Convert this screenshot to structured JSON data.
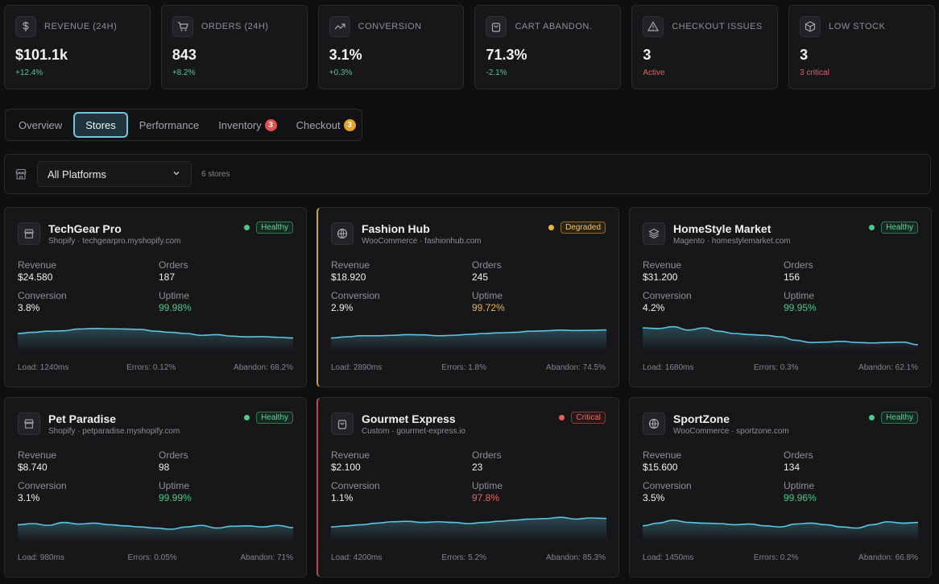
{
  "kpis": [
    {
      "label": "REVENUE (24H)",
      "value": "$101.1k",
      "delta": "+12.4%",
      "icon": "dollar-icon",
      "tone": "green"
    },
    {
      "label": "ORDERS (24H)",
      "value": "843",
      "delta": "+8.2%",
      "icon": "cart-icon",
      "tone": "green"
    },
    {
      "label": "CONVERSION",
      "value": "3.1%",
      "delta": "+0.3%",
      "icon": "trend-up-icon",
      "tone": "green"
    },
    {
      "label": "CART ABANDON.",
      "value": "71.3%",
      "delta": "-2.1%",
      "icon": "bag-icon",
      "tone": "green"
    },
    {
      "label": "CHECKOUT ISSUES",
      "value": "3",
      "delta": "Active",
      "icon": "warning-icon",
      "tone": "red"
    },
    {
      "label": "LOW STOCK",
      "value": "3",
      "delta": "3 critical",
      "icon": "box-icon",
      "tone": "red"
    }
  ],
  "tabs": [
    {
      "label": "Overview",
      "active": false
    },
    {
      "label": "Stores",
      "active": true
    },
    {
      "label": "Performance",
      "active": false
    },
    {
      "label": "Inventory",
      "badge": "3",
      "badge_color": "#e0514f",
      "active": false
    },
    {
      "label": "Checkout",
      "badge": "3",
      "badge_color": "#e4a12d",
      "active": false
    }
  ],
  "filter": {
    "platform_selected": "All Platforms",
    "store_count": "6 stores"
  },
  "labels": {
    "revenue": "Revenue",
    "orders": "Orders",
    "conversion": "Conversion",
    "uptime": "Uptime"
  },
  "stores": [
    {
      "name": "TechGear Pro",
      "sub": "Shopify · techgearpro.myshopify.com",
      "icon": "storefront-icon",
      "status": "Healthy",
      "status_key": "healthy",
      "revenue": "$24.580",
      "orders": "187",
      "conversion": "3.8%",
      "uptime": "99.98%",
      "uptime_tone": "green",
      "load": "Load: 1240ms",
      "errors": "Errors: 0.12%",
      "abandon": "Abandon: 68.2%",
      "spark": [
        0.5,
        0.55,
        0.6,
        0.62,
        0.7,
        0.72,
        0.71,
        0.7,
        0.68,
        0.6,
        0.55,
        0.5,
        0.42,
        0.45,
        0.38,
        0.35,
        0.36,
        0.33,
        0.3
      ]
    },
    {
      "name": "Fashion Hub",
      "sub": "WooCommerce · fashionhub.com",
      "icon": "globe-icon",
      "status": "Degraded",
      "status_key": "degraded",
      "revenue": "$18.920",
      "orders": "245",
      "conversion": "2.9%",
      "uptime": "99.72%",
      "uptime_tone": "yellow",
      "load": "Load: 2890ms",
      "errors": "Errors: 1.8%",
      "abandon": "Abandon: 74.5%",
      "spark": [
        0.3,
        0.35,
        0.4,
        0.4,
        0.42,
        0.45,
        0.44,
        0.4,
        0.42,
        0.46,
        0.5,
        0.53,
        0.55,
        0.6,
        0.62,
        0.65,
        0.63,
        0.64,
        0.66
      ]
    },
    {
      "name": "HomeStyle Market",
      "sub": "Magento · homestylemarket.com",
      "icon": "layers-icon",
      "status": "Healthy",
      "status_key": "healthy",
      "revenue": "$31.200",
      "orders": "156",
      "conversion": "4.2%",
      "uptime": "99.95%",
      "uptime_tone": "green",
      "load": "Load: 1680ms",
      "errors": "Errors: 0.3%",
      "abandon": "Abandon: 62.1%",
      "spark": [
        0.75,
        0.72,
        0.8,
        0.65,
        0.75,
        0.6,
        0.5,
        0.45,
        0.42,
        0.35,
        0.2,
        0.1,
        0.12,
        0.15,
        0.1,
        0.08,
        0.1,
        0.12,
        0.0
      ]
    },
    {
      "name": "Pet Paradise",
      "sub": "Shopify · petparadise.myshopify.com",
      "icon": "storefront-icon",
      "status": "Healthy",
      "status_key": "healthy",
      "revenue": "$8.740",
      "orders": "98",
      "conversion": "3.1%",
      "uptime": "99.99%",
      "uptime_tone": "green",
      "load": "Load: 980ms",
      "errors": "Errors: 0.05%",
      "abandon": "Abandon: 71%",
      "spark": [
        0.45,
        0.5,
        0.42,
        0.55,
        0.48,
        0.52,
        0.45,
        0.4,
        0.35,
        0.3,
        0.25,
        0.35,
        0.42,
        0.3,
        0.38,
        0.4,
        0.35,
        0.42,
        0.32
      ]
    },
    {
      "name": "Gourmet Express",
      "sub": "Custom · gourmet-express.io",
      "icon": "bag-icon",
      "status": "Critical",
      "status_key": "critical",
      "revenue": "$2.100",
      "orders": "23",
      "conversion": "1.1%",
      "uptime": "97.8%",
      "uptime_tone": "red",
      "load": "Load: 4200ms",
      "errors": "Errors: 5.2%",
      "abandon": "Abandon: 85.3%",
      "spark": [
        0.35,
        0.4,
        0.45,
        0.52,
        0.58,
        0.6,
        0.55,
        0.58,
        0.55,
        0.5,
        0.55,
        0.6,
        0.65,
        0.7,
        0.72,
        0.78,
        0.7,
        0.75,
        0.73
      ]
    },
    {
      "name": "SportZone",
      "sub": "WooCommerce · sportzone.com",
      "icon": "globe-icon",
      "status": "Healthy",
      "status_key": "healthy",
      "revenue": "$15.600",
      "orders": "134",
      "conversion": "3.5%",
      "uptime": "99.96%",
      "uptime_tone": "green",
      "load": "Load: 1450ms",
      "errors": "Errors: 0.2%",
      "abandon": "Abandon: 66.8%",
      "spark": [
        0.4,
        0.52,
        0.65,
        0.55,
        0.52,
        0.5,
        0.45,
        0.48,
        0.4,
        0.35,
        0.48,
        0.52,
        0.45,
        0.35,
        0.3,
        0.45,
        0.58,
        0.52,
        0.55
      ]
    }
  ]
}
